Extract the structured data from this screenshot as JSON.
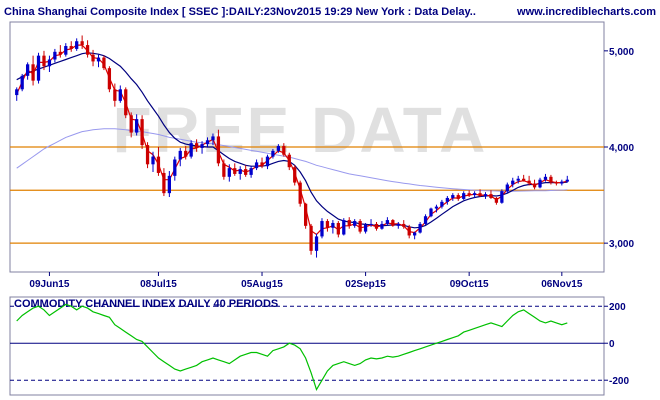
{
  "chart_data": [
    {
      "type": "candlestick",
      "title": "China Shanghai Composite Index [ SSEC ]:DAILY:23Nov2015 19:29 New York : Data Delay..",
      "source": "www.incrediblecharts.com",
      "watermark": "FREE DATA",
      "yticks": [
        3000,
        4000,
        5000
      ],
      "ytick_labels": [
        "3,000",
        "4,000",
        "5,000"
      ],
      "ylim": [
        2700,
        5300
      ],
      "xlabels": [
        "09Jun15",
        "08Jul15",
        "05Aug15",
        "02Sep15",
        "09Oct15",
        "06Nov15"
      ],
      "hlines": [
        3000,
        3550,
        4000
      ],
      "colors": {
        "up": "#0000cc",
        "down": "#cc0000",
        "ma_short": "#e00000",
        "ma_mid": "#000080",
        "ma_long": "#9999ee",
        "hline": "#e08000"
      },
      "candles": [
        [
          4540,
          4620,
          4480,
          4600
        ],
        [
          4600,
          4760,
          4580,
          4740
        ],
        [
          4740,
          4880,
          4700,
          4860
        ],
        [
          4860,
          4950,
          4640,
          4690
        ],
        [
          4690,
          4980,
          4660,
          4950
        ],
        [
          4950,
          5000,
          4800,
          4840
        ],
        [
          4840,
          4950,
          4780,
          4910
        ],
        [
          4910,
          5020,
          4880,
          4990
        ],
        [
          4990,
          5060,
          4930,
          4960
        ],
        [
          4960,
          5080,
          4940,
          5050
        ],
        [
          5050,
          5100,
          4990,
          5020
        ],
        [
          5020,
          5130,
          5000,
          5100
        ],
        [
          5100,
          5160,
          5020,
          5060
        ],
        [
          5060,
          5110,
          4930,
          4960
        ],
        [
          4960,
          5010,
          4840,
          4890
        ],
        [
          4890,
          4960,
          4830,
          4930
        ],
        [
          4930,
          4950,
          4800,
          4820
        ],
        [
          4820,
          4840,
          4570,
          4600
        ],
        [
          4600,
          4660,
          4420,
          4480
        ],
        [
          4480,
          4640,
          4460,
          4600
        ],
        [
          4600,
          4620,
          4300,
          4330
        ],
        [
          4330,
          4360,
          4100,
          4150
        ],
        [
          4150,
          4340,
          4120,
          4290
        ],
        [
          4290,
          4330,
          3980,
          4020
        ],
        [
          4020,
          4050,
          3780,
          3820
        ],
        [
          3820,
          3950,
          3740,
          3900
        ],
        [
          3900,
          4000,
          3700,
          3730
        ],
        [
          3730,
          3780,
          3490,
          3520
        ],
        [
          3520,
          3750,
          3480,
          3700
        ],
        [
          3700,
          3900,
          3650,
          3870
        ],
        [
          3870,
          3990,
          3800,
          3960
        ],
        [
          3960,
          4010,
          3870,
          3900
        ],
        [
          3900,
          4070,
          3880,
          4040
        ],
        [
          4040,
          4080,
          3950,
          3990
        ],
        [
          3990,
          4060,
          3930,
          4030
        ],
        [
          4030,
          4100,
          4000,
          4070
        ],
        [
          4070,
          4140,
          4020,
          4110
        ],
        [
          4110,
          4180,
          3800,
          3830
        ],
        [
          3830,
          3870,
          3660,
          3690
        ],
        [
          3690,
          3820,
          3640,
          3780
        ],
        [
          3780,
          3830,
          3700,
          3720
        ],
        [
          3720,
          3800,
          3660,
          3770
        ],
        [
          3770,
          3810,
          3690,
          3710
        ],
        [
          3710,
          3800,
          3680,
          3780
        ],
        [
          3780,
          3870,
          3760,
          3840
        ],
        [
          3840,
          3890,
          3780,
          3800
        ],
        [
          3800,
          3920,
          3770,
          3900
        ],
        [
          3900,
          3980,
          3880,
          3960
        ],
        [
          3960,
          4030,
          3940,
          4010
        ],
        [
          4010,
          4040,
          3900,
          3920
        ],
        [
          3920,
          3940,
          3760,
          3790
        ],
        [
          3790,
          3810,
          3600,
          3630
        ],
        [
          3630,
          3650,
          3380,
          3410
        ],
        [
          3410,
          3420,
          3150,
          3180
        ],
        [
          3180,
          3200,
          2880,
          2920
        ],
        [
          2920,
          3100,
          2850,
          3070
        ],
        [
          3070,
          3260,
          3050,
          3230
        ],
        [
          3230,
          3250,
          3120,
          3160
        ],
        [
          3160,
          3240,
          3100,
          3210
        ],
        [
          3210,
          3230,
          3060,
          3090
        ],
        [
          3090,
          3260,
          3080,
          3240
        ],
        [
          3240,
          3270,
          3150,
          3180
        ],
        [
          3180,
          3250,
          3160,
          3230
        ],
        [
          3230,
          3250,
          3100,
          3120
        ],
        [
          3120,
          3210,
          3100,
          3190
        ],
        [
          3190,
          3250,
          3170,
          3200
        ],
        [
          3200,
          3220,
          3130,
          3150
        ],
        [
          3150,
          3230,
          3140,
          3200
        ],
        [
          3200,
          3270,
          3180,
          3240
        ],
        [
          3240,
          3250,
          3170,
          3180
        ],
        [
          3180,
          3220,
          3150,
          3200
        ],
        [
          3200,
          3240,
          3150,
          3170
        ],
        [
          3170,
          3190,
          3050,
          3080
        ],
        [
          3080,
          3120,
          3040,
          3110
        ],
        [
          3110,
          3220,
          3100,
          3200
        ],
        [
          3200,
          3300,
          3190,
          3280
        ],
        [
          3280,
          3370,
          3270,
          3360
        ],
        [
          3360,
          3400,
          3320,
          3380
        ],
        [
          3380,
          3450,
          3360,
          3430
        ],
        [
          3430,
          3490,
          3400,
          3470
        ],
        [
          3470,
          3520,
          3440,
          3500
        ],
        [
          3500,
          3520,
          3440,
          3460
        ],
        [
          3460,
          3540,
          3450,
          3520
        ],
        [
          3520,
          3550,
          3480,
          3500
        ],
        [
          3500,
          3540,
          3470,
          3520
        ],
        [
          3520,
          3560,
          3480,
          3490
        ],
        [
          3490,
          3530,
          3460,
          3510
        ],
        [
          3510,
          3550,
          3460,
          3470
        ],
        [
          3470,
          3480,
          3400,
          3420
        ],
        [
          3420,
          3560,
          3410,
          3540
        ],
        [
          3540,
          3630,
          3520,
          3610
        ],
        [
          3610,
          3680,
          3580,
          3650
        ],
        [
          3650,
          3700,
          3620,
          3670
        ],
        [
          3670,
          3710,
          3640,
          3650
        ],
        [
          3650,
          3700,
          3600,
          3620
        ],
        [
          3620,
          3660,
          3560,
          3580
        ],
        [
          3580,
          3680,
          3570,
          3660
        ],
        [
          3660,
          3720,
          3640,
          3690
        ],
        [
          3690,
          3710,
          3610,
          3630
        ],
        [
          3630,
          3650,
          3600,
          3620
        ],
        [
          3620,
          3660,
          3600,
          3640
        ],
        [
          3640,
          3700,
          3630,
          3660
        ]
      ],
      "ma_short": [
        4550,
        4680,
        4800,
        4760,
        4880,
        4880,
        4890,
        4950,
        4960,
        5010,
        5020,
        5060,
        5060,
        5000,
        4930,
        4920,
        4860,
        4720,
        4590,
        4580,
        4460,
        4290,
        4280,
        4140,
        3960,
        3920,
        3820,
        3660,
        3660,
        3770,
        3880,
        3900,
        3980,
        3990,
        4020,
        4050,
        4080,
        3950,
        3820,
        3790,
        3750,
        3760,
        3740,
        3760,
        3800,
        3810,
        3860,
        3910,
        3960,
        3940,
        3860,
        3730,
        3560,
        3370,
        3130,
        3090,
        3150,
        3160,
        3180,
        3140,
        3180,
        3180,
        3200,
        3160,
        3170,
        3190,
        3170,
        3180,
        3210,
        3200,
        3200,
        3180,
        3120,
        3110,
        3160,
        3220,
        3300,
        3340,
        3390,
        3430,
        3470,
        3470,
        3490,
        3500,
        3510,
        3500,
        3500,
        3490,
        3450,
        3490,
        3560,
        3610,
        3640,
        3650,
        3630,
        3600,
        3630,
        3660,
        3640,
        3630,
        3630,
        3645
      ],
      "ma_mid": [
        4700,
        4730,
        4770,
        4790,
        4810,
        4830,
        4850,
        4870,
        4890,
        4910,
        4930,
        4950,
        4970,
        4980,
        4975,
        4965,
        4950,
        4920,
        4880,
        4840,
        4780,
        4710,
        4650,
        4570,
        4480,
        4400,
        4320,
        4230,
        4150,
        4090,
        4050,
        4030,
        4020,
        4010,
        4005,
        4000,
        4000,
        3960,
        3920,
        3880,
        3850,
        3830,
        3810,
        3800,
        3800,
        3800,
        3810,
        3830,
        3850,
        3860,
        3850,
        3810,
        3740,
        3650,
        3530,
        3440,
        3380,
        3330,
        3290,
        3250,
        3230,
        3220,
        3215,
        3200,
        3195,
        3190,
        3185,
        3180,
        3185,
        3190,
        3190,
        3185,
        3170,
        3160,
        3165,
        3185,
        3220,
        3260,
        3300,
        3340,
        3380,
        3410,
        3440,
        3460,
        3475,
        3485,
        3490,
        3495,
        3490,
        3500,
        3520,
        3550,
        3580,
        3600,
        3610,
        3610,
        3620,
        3630,
        3630,
        3630,
        3630,
        3635
      ],
      "ma_long": [
        3780,
        3820,
        3860,
        3900,
        3940,
        3980,
        4010,
        4040,
        4070,
        4100,
        4120,
        4140,
        4160,
        4170,
        4180,
        4185,
        4190,
        4190,
        4190,
        4185,
        4180,
        4170,
        4165,
        4160,
        4150,
        4140,
        4130,
        4115,
        4100,
        4090,
        4080,
        4070,
        4060,
        4050,
        4045,
        4040,
        4035,
        4025,
        4015,
        4005,
        3995,
        3985,
        3975,
        3965,
        3955,
        3945,
        3935,
        3925,
        3915,
        3905,
        3895,
        3880,
        3865,
        3850,
        3830,
        3810,
        3795,
        3780,
        3765,
        3750,
        3735,
        3720,
        3710,
        3700,
        3690,
        3680,
        3670,
        3660,
        3650,
        3640,
        3632,
        3624,
        3616,
        3608,
        3600,
        3594,
        3588,
        3582,
        3576,
        3570,
        3566,
        3562,
        3558,
        3554,
        3550,
        3548,
        3546,
        3544,
        3542,
        3540,
        3540,
        3540,
        3541,
        3542,
        3543,
        3544,
        3545,
        3546,
        3548,
        3550,
        3552,
        3555
      ]
    },
    {
      "type": "line",
      "title": "COMMODITY CHANNEL INDEX DAILY 40 PERIODS",
      "yticks": [
        200,
        0,
        -200
      ],
      "ytick_labels": [
        "200",
        "0",
        "-200"
      ],
      "ylim": [
        -280,
        250
      ],
      "hlines": [
        200,
        0,
        -200
      ],
      "colors": {
        "line": "#00c000",
        "zero": "#000080",
        "band": "#000080"
      },
      "values": [
        120,
        150,
        170,
        190,
        200,
        180,
        150,
        170,
        190,
        210,
        200,
        180,
        200,
        190,
        170,
        160,
        150,
        140,
        100,
        80,
        60,
        40,
        20,
        10,
        -20,
        -50,
        -80,
        -100,
        -120,
        -140,
        -150,
        -140,
        -130,
        -120,
        -100,
        -90,
        -80,
        -90,
        -100,
        -110,
        -90,
        -70,
        -60,
        -50,
        -50,
        -60,
        -70,
        -40,
        -30,
        -20,
        0,
        -10,
        -30,
        -80,
        -160,
        -250,
        -200,
        -150,
        -120,
        -110,
        -100,
        -110,
        -120,
        -110,
        -90,
        -80,
        -85,
        -80,
        -70,
        -75,
        -70,
        -60,
        -50,
        -40,
        -30,
        -20,
        -10,
        0,
        10,
        20,
        30,
        40,
        60,
        70,
        80,
        90,
        100,
        110,
        100,
        90,
        120,
        150,
        170,
        180,
        160,
        140,
        120,
        110,
        120,
        110,
        100,
        110
      ]
    }
  ]
}
